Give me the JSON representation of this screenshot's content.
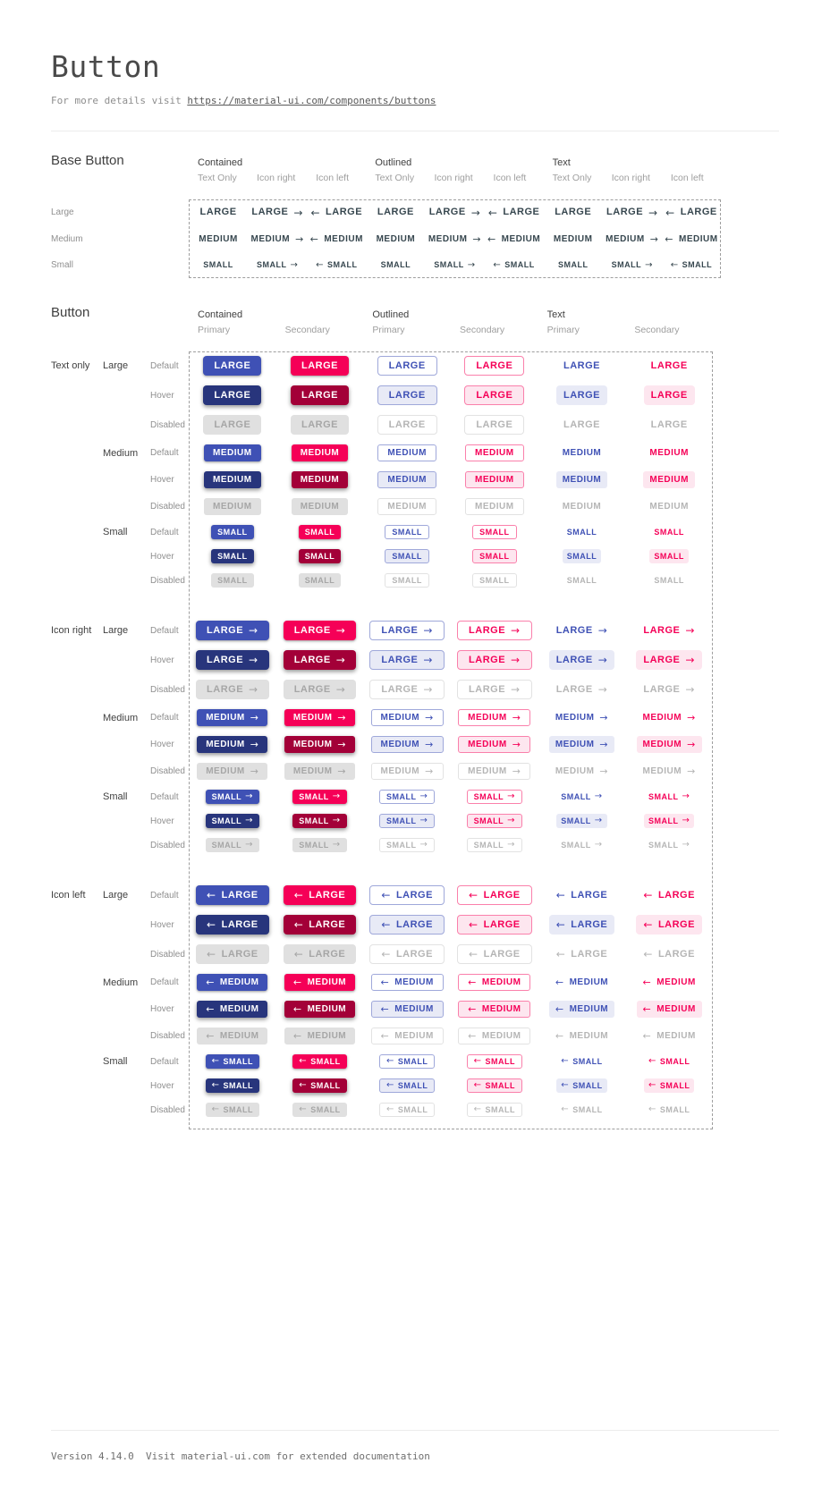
{
  "header": {
    "title": "Button",
    "subtitle_prefix": "For more details visit ",
    "subtitle_link": "https://material-ui.com/components/buttons"
  },
  "footer": {
    "text": "Version 4.14.0  Visit material-ui.com for extended documentation"
  },
  "icons": {
    "arrow_right": "→",
    "arrow_left": "←"
  },
  "base_section": {
    "title": "Base Button",
    "column_groups": [
      {
        "label": "Contained",
        "subcolumns": [
          "Text Only",
          "Icon right",
          "Icon left"
        ]
      },
      {
        "label": "Outlined",
        "subcolumns": [
          "Text Only",
          "Icon right",
          "Icon left"
        ]
      },
      {
        "label": "Text",
        "subcolumns": [
          "Text Only",
          "Icon right",
          "Icon left"
        ]
      }
    ],
    "rows": [
      {
        "label": "Large",
        "button_text": "LARGE",
        "size": "large"
      },
      {
        "label": "Medium",
        "button_text": "MEDIUM",
        "size": "medium"
      },
      {
        "label": "Small",
        "button_text": "SMALL",
        "size": "small"
      }
    ]
  },
  "button_section": {
    "title": "Button",
    "column_groups": [
      {
        "label": "Contained",
        "variant": "contained",
        "subcolumns": [
          "Primary",
          "Secondary"
        ]
      },
      {
        "label": "Outlined",
        "variant": "outlined",
        "subcolumns": [
          "Primary",
          "Secondary"
        ]
      },
      {
        "label": "Text",
        "variant": "text",
        "subcolumns": [
          "Primary",
          "Secondary"
        ]
      }
    ],
    "row_groups": [
      {
        "label": "Text only",
        "icon": "none"
      },
      {
        "label": "Icon right",
        "icon": "right"
      },
      {
        "label": "Icon left",
        "icon": "left"
      }
    ],
    "sizes": [
      {
        "label": "Large",
        "button_text": "LARGE",
        "size": "large"
      },
      {
        "label": "Medium",
        "button_text": "MEDIUM",
        "size": "medium"
      },
      {
        "label": "Small",
        "button_text": "SMALL",
        "size": "small"
      }
    ],
    "states": [
      {
        "label": "Default",
        "state": "default"
      },
      {
        "label": "Hover",
        "state": "hover"
      },
      {
        "label": "Disabled",
        "state": "disabled"
      }
    ]
  },
  "colors": {
    "primary": "#3f51b5",
    "primary_hover": "#28357c",
    "secondary": "#f50057",
    "secondary_hover": "#a30038",
    "disabled_bg": "#e0e0e0",
    "disabled_text": "#a6a6a6",
    "disabled_text_light": "#b5b5b5",
    "outlined_primary_border": "#9fa8da",
    "outlined_secondary_border": "#fa80ab",
    "primary_tint_bg": "#e8eaf6",
    "secondary_tint_bg": "#fde6ef",
    "base_text": "#37474f",
    "dashed_border": "#9e9e9e"
  }
}
